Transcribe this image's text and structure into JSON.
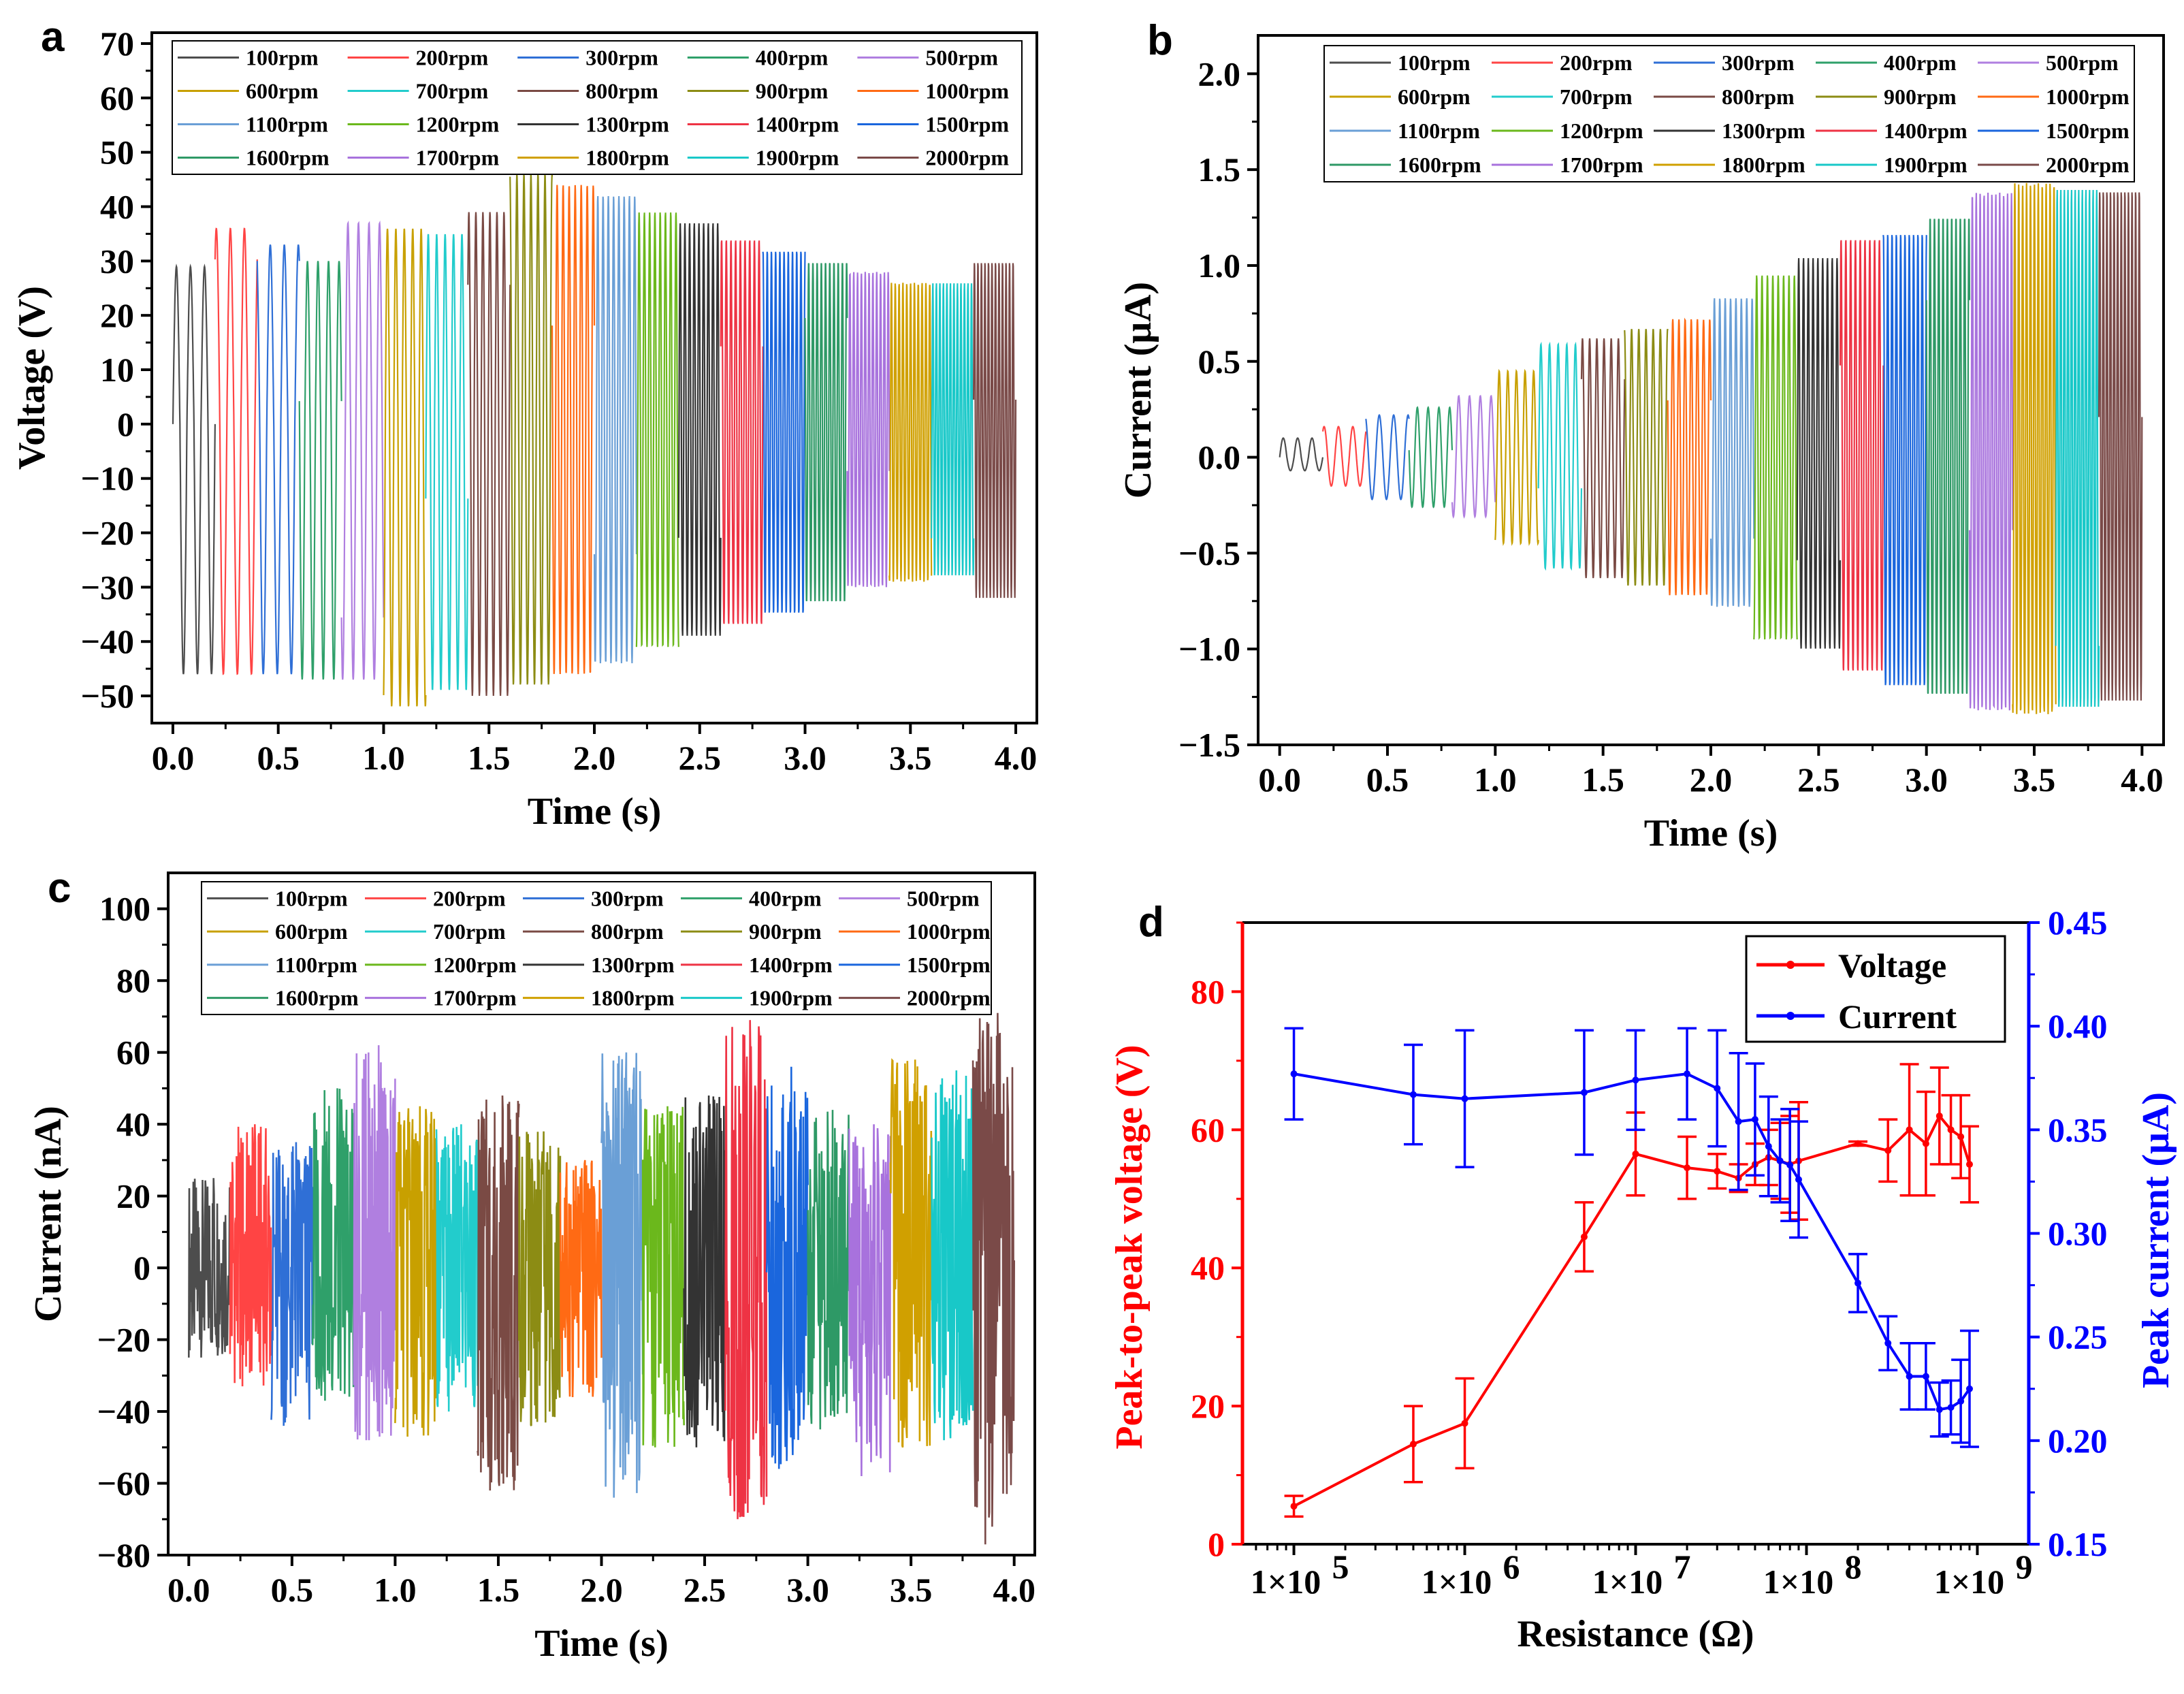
{
  "chart_data": [
    {
      "panel": "a",
      "type": "line",
      "xlabel": "Time (s)",
      "ylabel": "Voltage (V)",
      "xlim": [
        -0.1,
        4.1
      ],
      "ylim": [
        -55,
        72
      ],
      "xticks": [
        0.0,
        0.5,
        1.0,
        1.5,
        2.0,
        2.5,
        3.0,
        3.5,
        4.0
      ],
      "xtick_labels": [
        "0.0",
        "0.5",
        "1.0",
        "1.5",
        "2.0",
        "2.5",
        "3.0",
        "3.5",
        "4.0"
      ],
      "yticks": [
        -50,
        -40,
        -30,
        -20,
        -10,
        0,
        10,
        20,
        30,
        40,
        50,
        60,
        70
      ],
      "ytick_labels": [
        "−50",
        "−40",
        "−30",
        "−20",
        "−10",
        "0",
        "10",
        "20",
        "30",
        "40",
        "50",
        "60",
        "70"
      ],
      "legend_loc": "top",
      "series": [
        {
          "name": "100rpm",
          "t": [
            0.0,
            0.2
          ],
          "max": 29,
          "min": -46
        },
        {
          "name": "200rpm",
          "t": [
            0.2,
            0.4
          ],
          "max": 36,
          "min": -46
        },
        {
          "name": "300rpm",
          "t": [
            0.4,
            0.6
          ],
          "max": 33,
          "min": -46
        },
        {
          "name": "400rpm",
          "t": [
            0.6,
            0.8
          ],
          "max": 30,
          "min": -47
        },
        {
          "name": "500rpm",
          "t": [
            0.8,
            1.0
          ],
          "max": 37,
          "min": -47
        },
        {
          "name": "600rpm",
          "t": [
            1.0,
            1.2
          ],
          "max": 36,
          "min": -52
        },
        {
          "name": "700rpm",
          "t": [
            1.2,
            1.4
          ],
          "max": 35,
          "min": -49
        },
        {
          "name": "800rpm",
          "t": [
            1.4,
            1.6
          ],
          "max": 39,
          "min": -50
        },
        {
          "name": "900rpm",
          "t": [
            1.6,
            1.8
          ],
          "max": 46,
          "min": -48
        },
        {
          "name": "1000rpm",
          "t": [
            1.8,
            2.0
          ],
          "max": 44,
          "min": -46
        },
        {
          "name": "1100rpm",
          "t": [
            2.0,
            2.2
          ],
          "max": 42,
          "min": -44
        },
        {
          "name": "1200rpm",
          "t": [
            2.2,
            2.4
          ],
          "max": 39,
          "min": -41
        },
        {
          "name": "1300rpm",
          "t": [
            2.4,
            2.6
          ],
          "max": 37,
          "min": -39
        },
        {
          "name": "1400rpm",
          "t": [
            2.6,
            2.8
          ],
          "max": 34,
          "min": -37
        },
        {
          "name": "1500rpm",
          "t": [
            2.8,
            3.0
          ],
          "max": 32,
          "min": -35
        },
        {
          "name": "1600rpm",
          "t": [
            3.0,
            3.2
          ],
          "max": 30,
          "min": -33
        },
        {
          "name": "1700rpm",
          "t": [
            3.2,
            3.4
          ],
          "max": 28,
          "min": -30
        },
        {
          "name": "1800rpm",
          "t": [
            3.4,
            3.6
          ],
          "max": 26,
          "min": -29
        },
        {
          "name": "1900rpm",
          "t": [
            3.6,
            3.8
          ],
          "max": 26,
          "min": -28
        },
        {
          "name": "2000rpm",
          "t": [
            3.8,
            4.0
          ],
          "max": 30,
          "min": -32
        }
      ]
    },
    {
      "panel": "b",
      "type": "line",
      "xlabel": "Time (s)",
      "ylabel": "Current (μA)",
      "xlim": [
        -0.1,
        4.1
      ],
      "ylim": [
        -1.5,
        2.2
      ],
      "xticks": [
        0.0,
        0.5,
        1.0,
        1.5,
        2.0,
        2.5,
        3.0,
        3.5,
        4.0
      ],
      "xtick_labels": [
        "0.0",
        "0.5",
        "1.0",
        "1.5",
        "2.0",
        "2.5",
        "3.0",
        "3.5",
        "4.0"
      ],
      "yticks": [
        -1.5,
        -1.0,
        -0.5,
        0.0,
        0.5,
        1.0,
        1.5,
        2.0
      ],
      "ytick_labels": [
        "−1.5",
        "−1.0",
        "−0.5",
        "0.0",
        "0.5",
        "1.0",
        "1.5",
        "2.0"
      ],
      "legend_loc": "top",
      "series": [
        {
          "name": "100rpm",
          "t": [
            0.0,
            0.2
          ],
          "max": 0.1,
          "min": -0.07
        },
        {
          "name": "200rpm",
          "t": [
            0.2,
            0.4
          ],
          "max": 0.16,
          "min": -0.15
        },
        {
          "name": "300rpm",
          "t": [
            0.4,
            0.6
          ],
          "max": 0.22,
          "min": -0.22
        },
        {
          "name": "400rpm",
          "t": [
            0.6,
            0.8
          ],
          "max": 0.26,
          "min": -0.26
        },
        {
          "name": "500rpm",
          "t": [
            0.8,
            1.0
          ],
          "max": 0.32,
          "min": -0.31
        },
        {
          "name": "600rpm",
          "t": [
            1.0,
            1.2
          ],
          "max": 0.45,
          "min": -0.45
        },
        {
          "name": "700rpm",
          "t": [
            1.2,
            1.4
          ],
          "max": 0.59,
          "min": -0.58
        },
        {
          "name": "800rpm",
          "t": [
            1.4,
            1.6
          ],
          "max": 0.62,
          "min": -0.63
        },
        {
          "name": "900rpm",
          "t": [
            1.6,
            1.8
          ],
          "max": 0.67,
          "min": -0.67
        },
        {
          "name": "1000rpm",
          "t": [
            1.8,
            2.0
          ],
          "max": 0.72,
          "min": -0.72
        },
        {
          "name": "1100rpm",
          "t": [
            2.0,
            2.2
          ],
          "max": 0.83,
          "min": -0.78
        },
        {
          "name": "1200rpm",
          "t": [
            2.2,
            2.4
          ],
          "max": 0.95,
          "min": -0.95
        },
        {
          "name": "1300rpm",
          "t": [
            2.4,
            2.6
          ],
          "max": 1.04,
          "min": -1.0
        },
        {
          "name": "1400rpm",
          "t": [
            2.6,
            2.8
          ],
          "max": 1.14,
          "min": -1.12
        },
        {
          "name": "1500rpm",
          "t": [
            2.8,
            3.0
          ],
          "max": 1.17,
          "min": -1.2
        },
        {
          "name": "1600rpm",
          "t": [
            3.0,
            3.2
          ],
          "max": 1.26,
          "min": -1.25
        },
        {
          "name": "1700rpm",
          "t": [
            3.2,
            3.4
          ],
          "max": 1.38,
          "min": -1.32
        },
        {
          "name": "1800rpm",
          "t": [
            3.4,
            3.6
          ],
          "max": 1.43,
          "min": -1.34
        },
        {
          "name": "1900rpm",
          "t": [
            3.6,
            3.8
          ],
          "max": 1.4,
          "min": -1.31
        },
        {
          "name": "2000rpm",
          "t": [
            3.8,
            4.0
          ],
          "max": 1.4,
          "min": -1.27
        }
      ]
    },
    {
      "panel": "c",
      "type": "line",
      "xlabel": "Time (s)",
      "ylabel": "Current (nA)",
      "xlim": [
        -0.1,
        4.1
      ],
      "ylim": [
        -80,
        110
      ],
      "xticks": [
        0.0,
        0.5,
        1.0,
        1.5,
        2.0,
        2.5,
        3.0,
        3.5,
        4.0
      ],
      "xtick_labels": [
        "0.0",
        "0.5",
        "1.0",
        "1.5",
        "2.0",
        "2.5",
        "3.0",
        "3.5",
        "4.0"
      ],
      "yticks": [
        -80,
        -60,
        -40,
        -20,
        0,
        20,
        40,
        60,
        80,
        100
      ],
      "ytick_labels": [
        "−80",
        "−60",
        "−40",
        "−20",
        "0",
        "20",
        "40",
        "60",
        "80",
        "100"
      ],
      "legend_loc": "top",
      "series": [
        {
          "name": "100rpm",
          "t": [
            0.0,
            0.2
          ],
          "max": 25,
          "min": -25
        },
        {
          "name": "200rpm",
          "t": [
            0.2,
            0.4
          ],
          "max": 40,
          "min": -33
        },
        {
          "name": "300rpm",
          "t": [
            0.4,
            0.6
          ],
          "max": 35,
          "min": -44
        },
        {
          "name": "400rpm",
          "t": [
            0.6,
            0.8
          ],
          "max": 50,
          "min": -37
        },
        {
          "name": "500rpm",
          "t": [
            0.8,
            1.0
          ],
          "max": 62,
          "min": -48
        },
        {
          "name": "600rpm",
          "t": [
            1.0,
            1.2
          ],
          "max": 45,
          "min": -47
        },
        {
          "name": "700rpm",
          "t": [
            1.2,
            1.4
          ],
          "max": 40,
          "min": -40
        },
        {
          "name": "800rpm",
          "t": [
            1.4,
            1.6
          ],
          "max": 48,
          "min": -62
        },
        {
          "name": "900rpm",
          "t": [
            1.6,
            1.8
          ],
          "max": 38,
          "min": -44
        },
        {
          "name": "1000rpm",
          "t": [
            1.8,
            2.0
          ],
          "max": 30,
          "min": -36
        },
        {
          "name": "1100rpm",
          "t": [
            2.0,
            2.2
          ],
          "max": 60,
          "min": -64
        },
        {
          "name": "1200rpm",
          "t": [
            2.2,
            2.4
          ],
          "max": 45,
          "min": -50
        },
        {
          "name": "1300rpm",
          "t": [
            2.4,
            2.6
          ],
          "max": 48,
          "min": -50
        },
        {
          "name": "1400rpm",
          "t": [
            2.6,
            2.8
          ],
          "max": 69,
          "min": -70
        },
        {
          "name": "1500rpm",
          "t": [
            2.8,
            3.0
          ],
          "max": 56,
          "min": -56
        },
        {
          "name": "1600rpm",
          "t": [
            3.0,
            3.2
          ],
          "max": 44,
          "min": -45
        },
        {
          "name": "1700rpm",
          "t": [
            3.2,
            3.4
          ],
          "max": 40,
          "min": -58
        },
        {
          "name": "1800rpm",
          "t": [
            3.4,
            3.6
          ],
          "max": 58,
          "min": -50
        },
        {
          "name": "1900rpm",
          "t": [
            3.6,
            3.8
          ],
          "max": 55,
          "min": -48
        },
        {
          "name": "2000rpm",
          "t": [
            3.8,
            4.0
          ],
          "max": 71,
          "min": -77
        }
      ]
    },
    {
      "panel": "d",
      "type": "line",
      "xlabel": "Resistance (Ω)",
      "ylabel": "Peak-to-peak voltage (V)",
      "y2label": "Peak current (μA)",
      "xscale": "log",
      "xlim": [
        50000,
        2000000000
      ],
      "ylim": [
        0,
        90
      ],
      "y2lim": [
        0.15,
        0.45
      ],
      "xticks": [
        100000,
        1000000,
        10000000,
        100000000,
        1000000000
      ],
      "xtick_labels": [
        "1×10",
        "1×10",
        "1×10",
        "1×10",
        "1×10"
      ],
      "xtick_exponents": [
        "5",
        "6",
        "7",
        "8",
        "9"
      ],
      "yticks": [
        0,
        20,
        40,
        60,
        80
      ],
      "ytick_labels": [
        "0",
        "20",
        "40",
        "60",
        "80"
      ],
      "y2ticks": [
        0.15,
        0.2,
        0.25,
        0.3,
        0.35,
        0.4,
        0.45
      ],
      "y2tick_labels": [
        "0.15",
        "0.20",
        "0.25",
        "0.30",
        "0.35",
        "0.40",
        "0.45"
      ],
      "legend_loc": "top-right",
      "x": [
        100000,
        500000,
        1000000,
        5000000,
        10000000,
        20000000,
        30000000,
        40000000,
        50000000,
        60000000,
        70000000,
        80000000,
        90000000,
        200000000,
        300000000,
        400000000,
        500000000,
        600000000,
        700000000,
        800000000,
        900000000
      ],
      "series": [
        {
          "name": "Voltage",
          "color": "#ff0000",
          "axis": "left",
          "values": [
            5.5,
            14.5,
            17.5,
            44.5,
            56.5,
            54.5,
            54.0,
            53.0,
            55.0,
            56.0,
            55.5,
            55.0,
            55.5,
            58.0,
            57.0,
            60.0,
            58.0,
            62.0,
            60.0,
            59.0,
            55.0
          ],
          "errors": [
            1.5,
            5.5,
            6.5,
            5.0,
            6.0,
            4.5,
            2.5,
            2.0,
            3.0,
            4.0,
            5.5,
            7.0,
            8.5,
            0.3,
            4.5,
            9.5,
            7.5,
            7.0,
            5.0,
            6.0,
            5.5
          ]
        },
        {
          "name": "Current",
          "color": "#0000ff",
          "axis": "right",
          "values": [
            0.377,
            0.367,
            0.365,
            0.368,
            0.374,
            0.377,
            0.37,
            0.354,
            0.355,
            0.342,
            0.335,
            0.333,
            0.326,
            0.276,
            0.247,
            0.231,
            0.231,
            0.215,
            0.216,
            0.219,
            0.225
          ],
          "errors": [
            0.022,
            0.024,
            0.033,
            0.03,
            0.024,
            0.022,
            0.028,
            0.033,
            0.027,
            0.024,
            0.02,
            0.027,
            0.028,
            0.014,
            0.013,
            0.016,
            0.016,
            0.013,
            0.013,
            0.02,
            0.028
          ]
        }
      ]
    }
  ],
  "colors": {
    "100rpm": "#4d4d4d",
    "200rpm": "#ff4444",
    "300rpm": "#2f6fd6",
    "400rpm": "#2fa06a",
    "500rpm": "#b07fe0",
    "600rpm": "#c8a000",
    "700rpm": "#22cccc",
    "800rpm": "#7a4a44",
    "900rpm": "#8c8c14",
    "1000rpm": "#ff6a14",
    "1100rpm": "#6a9fd6",
    "1200rpm": "#6bb81c",
    "1300rpm": "#333333",
    "1400rpm": "#ee3344",
    "1500rpm": "#1a66dd",
    "1600rpm": "#2e9966",
    "1700rpm": "#a872dd",
    "1800rpm": "#d0a000",
    "1900rpm": "#18c8c8",
    "2000rpm": "#7a4a48"
  },
  "panel_labels": [
    "a",
    "b",
    "c",
    "d"
  ]
}
